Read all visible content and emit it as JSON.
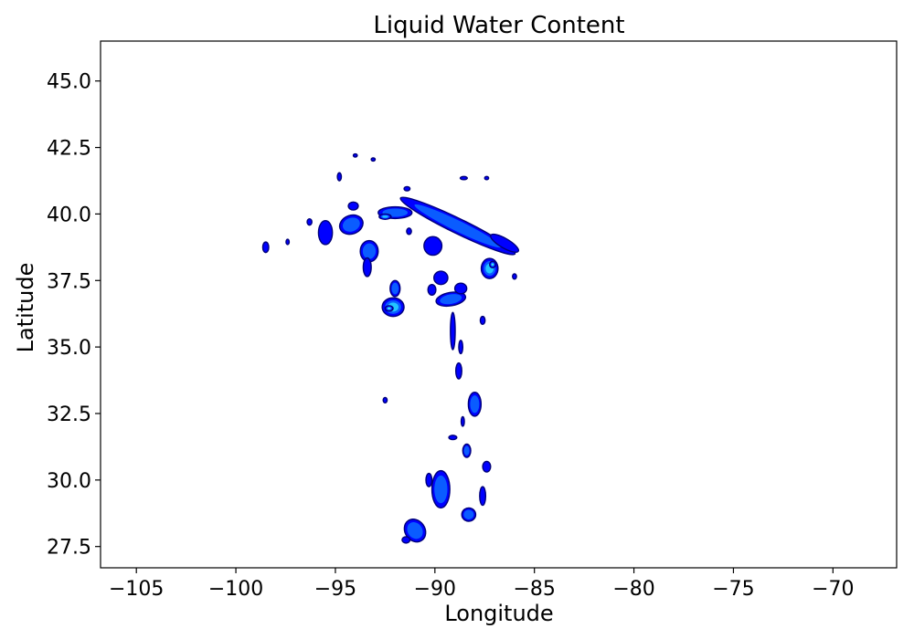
{
  "chart_data": {
    "type": "contour",
    "title": "Liquid Water Content",
    "xlabel": "Longitude",
    "ylabel": "Latitude",
    "xlim": [
      -106.8,
      -66.8
    ],
    "ylim": [
      26.7,
      46.5
    ],
    "xticks": [
      -105,
      -100,
      -95,
      -90,
      -85,
      -80,
      -75,
      -70
    ],
    "xtick_labels": [
      "−105",
      "−100",
      "−95",
      "−90",
      "−85",
      "−80",
      "−75",
      "−70"
    ],
    "yticks": [
      27.5,
      30.0,
      32.5,
      35.0,
      37.5,
      40.0,
      42.5,
      45.0
    ],
    "ytick_labels": [
      "27.5",
      "30.0",
      "32.5",
      "35.0",
      "37.5",
      "40.0",
      "42.5",
      "45.0"
    ],
    "grid": false,
    "colormap": [
      "#00007a",
      "#0000ff",
      "#0a5cff",
      "#22c4ff",
      "#7fffd0"
    ],
    "features": [
      {
        "lon": -88.85,
        "lat": 39.55,
        "rx": 3.2,
        "ry": 0.28,
        "rot": 26,
        "level": 2,
        "shape": "band"
      },
      {
        "lon": -86.5,
        "lat": 38.9,
        "rx": 0.8,
        "ry": 0.18,
        "rot": 30,
        "level": 1
      },
      {
        "lon": -87.25,
        "lat": 37.95,
        "rx": 0.42,
        "ry": 0.38,
        "rot": 0,
        "level": 3
      },
      {
        "lon": -87.1,
        "lat": 38.1,
        "rx": 0.15,
        "ry": 0.12,
        "rot": 0,
        "level": 4
      },
      {
        "lon": -94.2,
        "lat": 39.6,
        "rx": 0.6,
        "ry": 0.35,
        "rot": -20,
        "level": 2
      },
      {
        "lon": -95.5,
        "lat": 39.3,
        "rx": 0.35,
        "ry": 0.45,
        "rot": 0,
        "level": 1
      },
      {
        "lon": -92.0,
        "lat": 40.05,
        "rx": 0.85,
        "ry": 0.22,
        "rot": 0,
        "level": 2
      },
      {
        "lon": -92.5,
        "lat": 39.9,
        "rx": 0.3,
        "ry": 0.1,
        "rot": 0,
        "level": 3
      },
      {
        "lon": -93.3,
        "lat": 38.6,
        "rx": 0.45,
        "ry": 0.4,
        "rot": 0,
        "level": 2
      },
      {
        "lon": -93.4,
        "lat": 38.0,
        "rx": 0.2,
        "ry": 0.35,
        "rot": 0,
        "level": 1
      },
      {
        "lon": -92.1,
        "lat": 36.5,
        "rx": 0.55,
        "ry": 0.35,
        "rot": 0,
        "level": 3
      },
      {
        "lon": -92.3,
        "lat": 36.45,
        "rx": 0.2,
        "ry": 0.1,
        "rot": 0,
        "level": 4
      },
      {
        "lon": -92.0,
        "lat": 37.2,
        "rx": 0.25,
        "ry": 0.3,
        "rot": 0,
        "level": 2
      },
      {
        "lon": -89.2,
        "lat": 36.8,
        "rx": 0.75,
        "ry": 0.25,
        "rot": -10,
        "level": 2
      },
      {
        "lon": -89.7,
        "lat": 37.6,
        "rx": 0.35,
        "ry": 0.25,
        "rot": 0,
        "level": 1
      },
      {
        "lon": -90.1,
        "lat": 38.8,
        "rx": 0.45,
        "ry": 0.35,
        "rot": 0,
        "level": 1
      },
      {
        "lon": -88.7,
        "lat": 37.2,
        "rx": 0.3,
        "ry": 0.2,
        "rot": 0,
        "level": 1
      },
      {
        "lon": -89.1,
        "lat": 35.6,
        "rx": 0.12,
        "ry": 0.7,
        "rot": 0,
        "level": 1
      },
      {
        "lon": -88.8,
        "lat": 34.1,
        "rx": 0.15,
        "ry": 0.3,
        "rot": 0,
        "level": 1
      },
      {
        "lon": -88.0,
        "lat": 32.85,
        "rx": 0.32,
        "ry": 0.45,
        "rot": 0,
        "level": 2
      },
      {
        "lon": -88.4,
        "lat": 31.1,
        "rx": 0.2,
        "ry": 0.25,
        "rot": 0,
        "level": 2
      },
      {
        "lon": -89.1,
        "lat": 31.6,
        "rx": 0.2,
        "ry": 0.08,
        "rot": 0,
        "level": 1
      },
      {
        "lon": -89.7,
        "lat": 29.65,
        "rx": 0.45,
        "ry": 0.7,
        "rot": 0,
        "level": 2
      },
      {
        "lon": -90.3,
        "lat": 30.0,
        "rx": 0.15,
        "ry": 0.25,
        "rot": 0,
        "level": 1
      },
      {
        "lon": -88.3,
        "lat": 28.7,
        "rx": 0.35,
        "ry": 0.25,
        "rot": 0,
        "level": 2
      },
      {
        "lon": -87.6,
        "lat": 29.4,
        "rx": 0.15,
        "ry": 0.35,
        "rot": 0,
        "level": 1
      },
      {
        "lon": -87.4,
        "lat": 30.5,
        "rx": 0.2,
        "ry": 0.2,
        "rot": 0,
        "level": 1
      },
      {
        "lon": -91.0,
        "lat": 28.1,
        "rx": 0.5,
        "ry": 0.45,
        "rot": -35,
        "level": 2
      },
      {
        "lon": -91.45,
        "lat": 27.75,
        "rx": 0.2,
        "ry": 0.12,
        "rot": 0,
        "level": 1
      },
      {
        "lon": -98.5,
        "lat": 38.75,
        "rx": 0.15,
        "ry": 0.2,
        "rot": 0,
        "level": 1
      },
      {
        "lon": -96.3,
        "lat": 39.7,
        "rx": 0.12,
        "ry": 0.12,
        "rot": 0,
        "level": 1
      },
      {
        "lon": -94.1,
        "lat": 40.3,
        "rx": 0.25,
        "ry": 0.15,
        "rot": 0,
        "level": 1
      },
      {
        "lon": -94.8,
        "lat": 41.4,
        "rx": 0.1,
        "ry": 0.15,
        "rot": 0,
        "level": 1
      },
      {
        "lon": -91.4,
        "lat": 40.95,
        "rx": 0.15,
        "ry": 0.08,
        "rot": 0,
        "level": 1
      },
      {
        "lon": -90.15,
        "lat": 37.15,
        "rx": 0.2,
        "ry": 0.2,
        "rot": 0,
        "level": 1
      },
      {
        "lon": -91.3,
        "lat": 39.35,
        "rx": 0.12,
        "ry": 0.12,
        "rot": 0,
        "level": 1
      },
      {
        "lon": -87.6,
        "lat": 36.0,
        "rx": 0.12,
        "ry": 0.15,
        "rot": 0,
        "level": 1
      },
      {
        "lon": -88.7,
        "lat": 35.0,
        "rx": 0.1,
        "ry": 0.25,
        "rot": 0,
        "level": 1
      },
      {
        "lon": -88.6,
        "lat": 32.2,
        "rx": 0.08,
        "ry": 0.18,
        "rot": 0,
        "level": 1
      },
      {
        "lon": -92.5,
        "lat": 33.0,
        "rx": 0.1,
        "ry": 0.1,
        "rot": 0,
        "level": 1
      },
      {
        "lon": -88.55,
        "lat": 41.35,
        "rx": 0.18,
        "ry": 0.06,
        "rot": 0,
        "level": 1
      },
      {
        "lon": -87.4,
        "lat": 41.35,
        "rx": 0.1,
        "ry": 0.06,
        "rot": 0,
        "level": 1
      },
      {
        "lon": -94.0,
        "lat": 42.2,
        "rx": 0.1,
        "ry": 0.06,
        "rot": 0,
        "level": 1
      },
      {
        "lon": -93.1,
        "lat": 42.05,
        "rx": 0.1,
        "ry": 0.06,
        "rot": 0,
        "level": 1
      },
      {
        "lon": -97.4,
        "lat": 38.95,
        "rx": 0.08,
        "ry": 0.1,
        "rot": 0,
        "level": 1
      },
      {
        "lon": -86.0,
        "lat": 37.65,
        "rx": 0.1,
        "ry": 0.1,
        "rot": 0,
        "level": 1
      }
    ]
  }
}
